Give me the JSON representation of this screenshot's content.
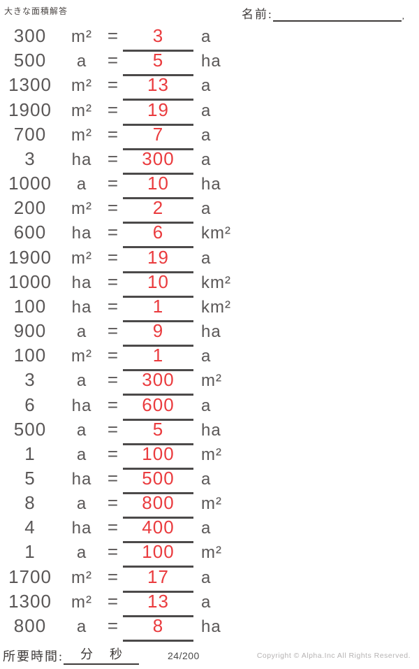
{
  "header": {
    "title": "大きな面積解答",
    "name_label": "名前:",
    "name_trailing_mark": ","
  },
  "symbols": {
    "equals": "="
  },
  "colors": {
    "problem_text": "#5a5757",
    "answer_red": "#ea3b3e",
    "answer_line": "#4c4a4a",
    "copyright_gray": "#b5b2b2"
  },
  "rows": [
    {
      "value": "300",
      "unit": "m²",
      "answer": "3",
      "answer_unit": "a"
    },
    {
      "value": "500",
      "unit": "a",
      "answer": "5",
      "answer_unit": "ha"
    },
    {
      "value": "1300",
      "unit": "m²",
      "answer": "13",
      "answer_unit": "a"
    },
    {
      "value": "1900",
      "unit": "m²",
      "answer": "19",
      "answer_unit": "a"
    },
    {
      "value": "700",
      "unit": "m²",
      "answer": "7",
      "answer_unit": "a"
    },
    {
      "value": "3",
      "unit": "ha",
      "answer": "300",
      "answer_unit": "a"
    },
    {
      "value": "1000",
      "unit": "a",
      "answer": "10",
      "answer_unit": "ha"
    },
    {
      "value": "200",
      "unit": "m²",
      "answer": "2",
      "answer_unit": "a"
    },
    {
      "value": "600",
      "unit": "ha",
      "answer": "6",
      "answer_unit": "km²"
    },
    {
      "value": "1900",
      "unit": "m²",
      "answer": "19",
      "answer_unit": "a"
    },
    {
      "value": "1000",
      "unit": "ha",
      "answer": "10",
      "answer_unit": "km²"
    },
    {
      "value": "100",
      "unit": "ha",
      "answer": "1",
      "answer_unit": "km²"
    },
    {
      "value": "900",
      "unit": "a",
      "answer": "9",
      "answer_unit": "ha"
    },
    {
      "value": "100",
      "unit": "m²",
      "answer": "1",
      "answer_unit": "a"
    },
    {
      "value": "3",
      "unit": "a",
      "answer": "300",
      "answer_unit": "m²"
    },
    {
      "value": "6",
      "unit": "ha",
      "answer": "600",
      "answer_unit": "a"
    },
    {
      "value": "500",
      "unit": "a",
      "answer": "5",
      "answer_unit": "ha"
    },
    {
      "value": "1",
      "unit": "a",
      "answer": "100",
      "answer_unit": "m²"
    },
    {
      "value": "5",
      "unit": "ha",
      "answer": "500",
      "answer_unit": "a"
    },
    {
      "value": "8",
      "unit": "a",
      "answer": "800",
      "answer_unit": "m²"
    },
    {
      "value": "4",
      "unit": "ha",
      "answer": "400",
      "answer_unit": "a"
    },
    {
      "value": "1",
      "unit": "a",
      "answer": "100",
      "answer_unit": "m²"
    },
    {
      "value": "1700",
      "unit": "m²",
      "answer": "17",
      "answer_unit": "a"
    },
    {
      "value": "1300",
      "unit": "m²",
      "answer": "13",
      "answer_unit": "a"
    },
    {
      "value": "800",
      "unit": "a",
      "answer": "8",
      "answer_unit": "ha"
    }
  ],
  "footer": {
    "time_label": "所要時間:",
    "minutes_label": "分",
    "seconds_label": "秒",
    "page": "24/200",
    "copyright": "Copyright © Alpha.Inc All Rights Reserved."
  }
}
